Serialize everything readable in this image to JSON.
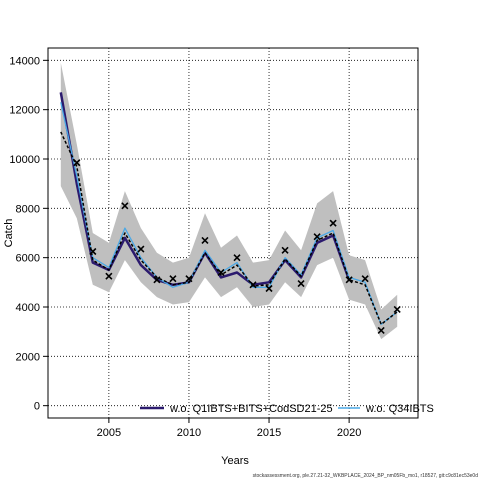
{
  "chart_data": {
    "type": "line",
    "xlabel": "Years",
    "ylabel": "Catch",
    "xlim": [
      2001.2,
      2024.3
    ],
    "ylim": [
      -500,
      14500
    ],
    "xticks": [
      2005,
      2010,
      2015,
      2020
    ],
    "yticks": [
      0,
      2000,
      4000,
      6000,
      8000,
      10000,
      12000,
      14000
    ],
    "grid": true,
    "legend_position": "bottom",
    "series": [
      {
        "name": "w.o. Q1IBTS+BITS+CodSD21-25",
        "color": "#2b1a6e",
        "x": [
          2002,
          2003,
          2004,
          2005,
          2006,
          2007,
          2008,
          2009,
          2010,
          2011,
          2012,
          2013,
          2014,
          2015,
          2016,
          2017,
          2018,
          2019,
          2020
        ],
        "values": [
          12700,
          9000,
          5800,
          5500,
          6800,
          5700,
          5100,
          4900,
          5000,
          6200,
          5200,
          5400,
          4900,
          5000,
          5900,
          5200,
          6600,
          6900,
          5100
        ]
      },
      {
        "name": "w.o. Q34IBTS",
        "color": "#4aa8e6",
        "x": [
          2002,
          2003,
          2004,
          2005,
          2006,
          2007,
          2008,
          2009,
          2010,
          2011,
          2012,
          2013,
          2014,
          2015,
          2016,
          2017,
          2018,
          2019,
          2020,
          2021,
          2022,
          2023
        ],
        "values": [
          12300,
          9300,
          6000,
          5600,
          7200,
          6000,
          5200,
          4800,
          5000,
          6300,
          5400,
          5800,
          4800,
          4800,
          6000,
          5300,
          6800,
          7100,
          5200,
          5000,
          3300,
          3800
        ]
      },
      {
        "name": "",
        "color": "#000000",
        "x": [
          2002,
          2003,
          2004,
          2005,
          2006,
          2007,
          2008,
          2009,
          2010,
          2011,
          2012,
          2013,
          2014,
          2015,
          2016,
          2017,
          2018,
          2019,
          2020,
          2021,
          2022,
          2023
        ],
        "values": [
          11100,
          9700,
          5900,
          5500,
          7000,
          5900,
          5200,
          4900,
          5000,
          6200,
          5300,
          5700,
          4850,
          4900,
          5950,
          5250,
          6700,
          7000,
          5100,
          4900,
          3300,
          3800
        ]
      }
    ],
    "confidence_band": {
      "x": [
        2002,
        2003,
        2004,
        2005,
        2006,
        2007,
        2008,
        2009,
        2010,
        2011,
        2012,
        2013,
        2014,
        2015,
        2016,
        2017,
        2018,
        2019,
        2020,
        2021,
        2022,
        2023
      ],
      "lower": [
        8900,
        7600,
        4900,
        4600,
        5900,
        5000,
        4400,
        4100,
        4200,
        5200,
        4400,
        4800,
        4000,
        4100,
        5000,
        4400,
        5700,
        6000,
        4300,
        4100,
        2700,
        3200
      ],
      "upper": [
        13900,
        10600,
        7000,
        6600,
        8700,
        7200,
        6200,
        5800,
        6000,
        7800,
        6400,
        6900,
        5800,
        5900,
        7100,
        6300,
        8200,
        8700,
        6100,
        5900,
        3900,
        4500
      ]
    },
    "observations": {
      "marker": "x",
      "x": [
        2003,
        2004,
        2005,
        2006,
        2007,
        2008,
        2009,
        2010,
        2011,
        2012,
        2013,
        2014,
        2015,
        2016,
        2017,
        2018,
        2019,
        2020,
        2021,
        2022,
        2023
      ],
      "values": [
        9850,
        6250,
        5250,
        8100,
        6350,
        5100,
        5150,
        5150,
        6700,
        5400,
        6000,
        4900,
        4750,
        6300,
        4950,
        6850,
        7400,
        5100,
        5150,
        3050,
        3900
      ]
    },
    "footer": "stockassessment.org, ple.27.21-32_WKBPLACE_2024_BP_nm05Fb_mo1, r18527, git:c9c81ec53e0d"
  }
}
